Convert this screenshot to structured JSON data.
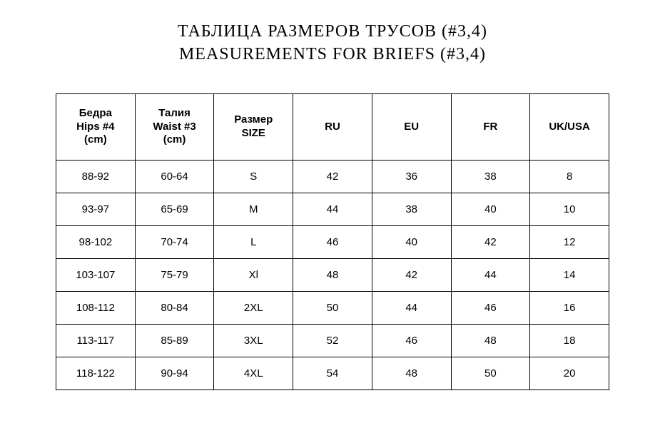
{
  "title": {
    "line1": "ТАБЛИЦА РАЗМЕРОВ ТРУСОВ (#3,4)",
    "line2": "MEASUREMENTS FOR BRIEFS (#3,4)"
  },
  "table": {
    "columns": [
      "Бедра\nHips #4\n(cm)",
      "Талия\nWaist #3\n(cm)",
      "Размер\nSIZE",
      "RU",
      "EU",
      "FR",
      "UK/USA"
    ],
    "rows": [
      [
        "88-92",
        "60-64",
        "S",
        "42",
        "36",
        "38",
        "8"
      ],
      [
        "93-97",
        "65-69",
        "M",
        "44",
        "38",
        "40",
        "10"
      ],
      [
        "98-102",
        "70-74",
        "L",
        "46",
        "40",
        "42",
        "12"
      ],
      [
        "103-107",
        "75-79",
        "Xl",
        "48",
        "42",
        "44",
        "14"
      ],
      [
        "108-112",
        "80-84",
        "2XL",
        "50",
        "44",
        "46",
        "16"
      ],
      [
        "113-117",
        "85-89",
        "3XL",
        "52",
        "46",
        "48",
        "18"
      ],
      [
        "118-122",
        "90-94",
        "4XL",
        "54",
        "48",
        "50",
        "20"
      ]
    ],
    "border_color": "#000000",
    "background_color": "#ffffff",
    "header_fontsize": 15,
    "cell_fontsize": 15,
    "header_fontweight": 700,
    "cell_fontweight": 400
  }
}
